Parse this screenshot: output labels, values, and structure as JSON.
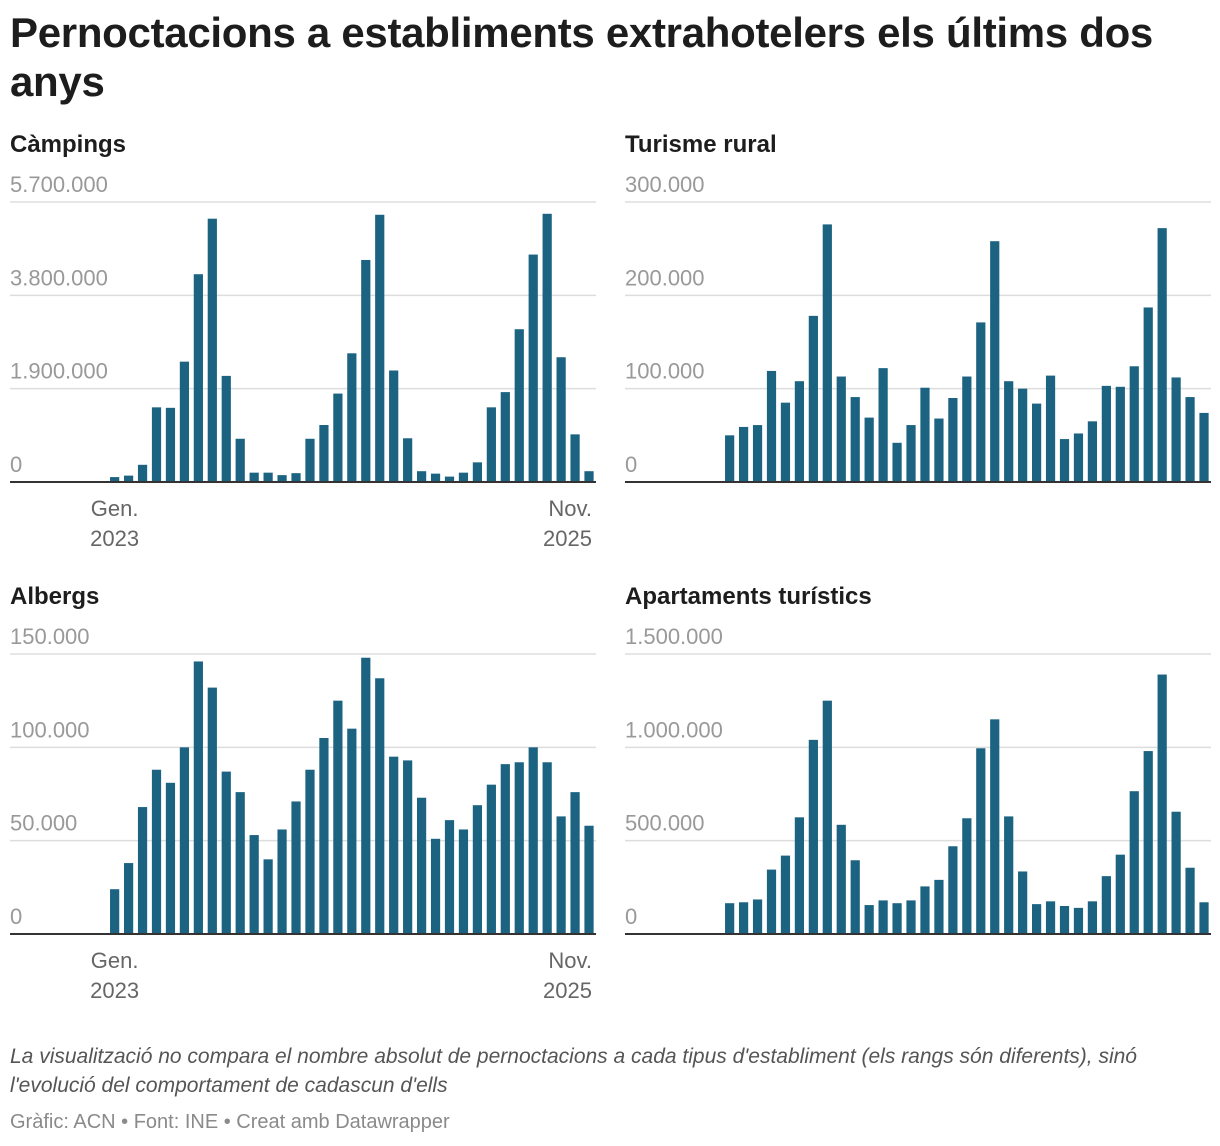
{
  "title": "Pernoctacions a establiments extrahotelers els últims dos anys",
  "notes": "La visualització no compara el nombre absolut de pernoctacions a cada tipus d'establiment (els rangs són diferents), sinó l'evolució del comportament de cadascun d'ells",
  "credits": "Gràfic: ACN • Font: INE • Creat amb Datawrapper",
  "colors": {
    "bar": "#1b6380",
    "grid": "#dddddd",
    "baseline": "#333333"
  },
  "chart_data": [
    {
      "type": "bar",
      "title": "Càmpings",
      "ylim": [
        0,
        5700000
      ],
      "yticks": [
        "0",
        "1.900.000",
        "3.800.000",
        "5.700.000"
      ],
      "ytick_values": [
        0,
        1900000,
        3800000,
        5700000
      ],
      "x_labels": [
        {
          "index": 7,
          "line1": "Gen.",
          "line2": "2023",
          "anchor": "middle"
        },
        {
          "index": 41,
          "line1": "Nov.",
          "line2": "2025",
          "anchor": "end"
        }
      ],
      "values": [
        null,
        null,
        null,
        null,
        null,
        null,
        null,
        100000,
        130000,
        350000,
        1520000,
        1510000,
        2450000,
        4230000,
        5360000,
        2160000,
        880000,
        190000,
        190000,
        140000,
        180000,
        880000,
        1160000,
        1800000,
        2620000,
        4520000,
        5440000,
        2270000,
        890000,
        220000,
        170000,
        110000,
        190000,
        400000,
        1520000,
        1830000,
        3110000,
        4630000,
        5460000,
        2540000,
        970000,
        220000
      ]
    },
    {
      "type": "bar",
      "title": "Turisme rural",
      "ylim": [
        0,
        300000
      ],
      "yticks": [
        "0",
        "100.000",
        "200.000",
        "300.000"
      ],
      "ytick_values": [
        0,
        100000,
        200000,
        300000
      ],
      "x_labels": [],
      "values": [
        null,
        null,
        null,
        null,
        null,
        null,
        null,
        50000,
        59000,
        61000,
        119000,
        85000,
        108000,
        178000,
        276000,
        113000,
        91000,
        69000,
        122000,
        42000,
        61000,
        101000,
        68000,
        90000,
        113000,
        171000,
        258000,
        108000,
        100000,
        84000,
        114000,
        46000,
        52000,
        65000,
        103000,
        102000,
        124000,
        187000,
        272000,
        112000,
        91000,
        74000
      ]
    },
    {
      "type": "bar",
      "title": "Albergs",
      "ylim": [
        0,
        150000
      ],
      "yticks": [
        "0",
        "50.000",
        "100.000",
        "150.000"
      ],
      "ytick_values": [
        0,
        50000,
        100000,
        150000
      ],
      "x_labels": [
        {
          "index": 7,
          "line1": "Gen.",
          "line2": "2023",
          "anchor": "middle"
        },
        {
          "index": 41,
          "line1": "Nov.",
          "line2": "2025",
          "anchor": "end"
        }
      ],
      "values": [
        null,
        null,
        null,
        null,
        null,
        null,
        null,
        24000,
        38000,
        68000,
        88000,
        81000,
        100000,
        146000,
        132000,
        87000,
        76000,
        53000,
        40000,
        56000,
        71000,
        88000,
        105000,
        125000,
        110000,
        148000,
        137000,
        95000,
        93000,
        73000,
        51000,
        61000,
        56000,
        69000,
        80000,
        91000,
        92000,
        100000,
        92000,
        63000,
        76000,
        58000
      ]
    },
    {
      "type": "bar",
      "title": "Apartaments turístics",
      "ylim": [
        0,
        1500000
      ],
      "yticks": [
        "0",
        "500.000",
        "1.000.000",
        "1.500.000"
      ],
      "ytick_values": [
        0,
        500000,
        1000000,
        1500000
      ],
      "x_labels": [],
      "values": [
        null,
        null,
        null,
        null,
        null,
        null,
        null,
        165000,
        170000,
        185000,
        345000,
        420000,
        625000,
        1040000,
        1250000,
        585000,
        395000,
        155000,
        180000,
        165000,
        180000,
        255000,
        290000,
        470000,
        620000,
        995000,
        1150000,
        630000,
        335000,
        160000,
        175000,
        150000,
        140000,
        175000,
        310000,
        425000,
        765000,
        980000,
        1390000,
        655000,
        355000,
        170000
      ]
    }
  ]
}
